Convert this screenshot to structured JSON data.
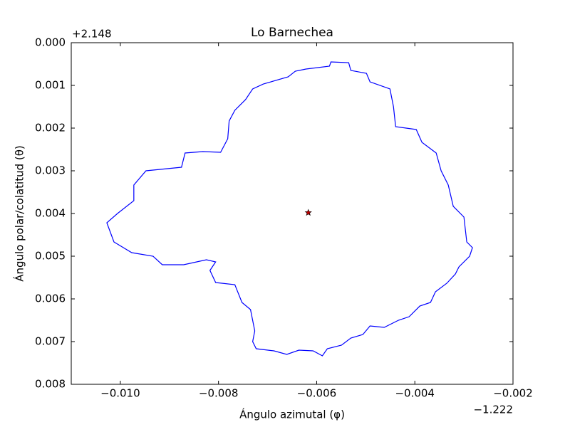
{
  "chart_data": {
    "type": "line",
    "title": "Lo Barnechea",
    "xlabel": "Ángulo azimutal (φ)",
    "ylabel": "Ángulo polar/colatitud (θ)",
    "x_offset_label": "−1.222",
    "y_offset_label": "+2.148",
    "xlim": [
      -0.011,
      -0.002
    ],
    "ylim": [
      0,
      0.008
    ],
    "y_inverted": true,
    "xticks": [
      {
        "value": -0.01,
        "label": "−0.010"
      },
      {
        "value": -0.008,
        "label": "−0.008"
      },
      {
        "value": -0.006,
        "label": "−0.006"
      },
      {
        "value": -0.004,
        "label": "−0.004"
      },
      {
        "value": -0.002,
        "label": "−0.002"
      }
    ],
    "yticks": [
      {
        "value": 0,
        "label": "0.000"
      },
      {
        "value": 0.001,
        "label": "0.001"
      },
      {
        "value": 0.002,
        "label": "0.002"
      },
      {
        "value": 0.003,
        "label": "0.003"
      },
      {
        "value": 0.004,
        "label": "0.004"
      },
      {
        "value": 0.005,
        "label": "0.005"
      },
      {
        "value": 0.006,
        "label": "0.006"
      },
      {
        "value": 0.007,
        "label": "0.007"
      },
      {
        "value": 0.008,
        "label": "0.008"
      }
    ],
    "grid": false,
    "series": [
      {
        "color": "#0000ff",
        "x": [
          -0.006217,
          -0.005739,
          -0.00571,
          -0.005348,
          -0.005304,
          -0.004986,
          -0.004913,
          -0.004507,
          -0.004435,
          -0.004391,
          -0.003971,
          -0.003855,
          -0.003565,
          -0.003464,
          -0.003319,
          -0.003217,
          -0.003,
          -0.002942,
          -0.002826,
          -0.002884,
          -0.003101,
          -0.003174,
          -0.003348,
          -0.00358,
          -0.003681,
          -0.003899,
          -0.004116,
          -0.004333,
          -0.004623,
          -0.004913,
          -0.005058,
          -0.005304,
          -0.005493,
          -0.005783,
          -0.005884,
          -0.006072,
          -0.006362,
          -0.006609,
          -0.00687,
          -0.007232,
          -0.007304,
          -0.007261,
          -0.007348,
          -0.007522,
          -0.007667,
          -0.008058,
          -0.008174,
          -0.008058,
          -0.008246,
          -0.00871,
          -0.009145,
          -0.009333,
          -0.009768,
          -0.01013,
          -0.010275,
          -0.010058,
          -0.009725,
          -0.009725,
          -0.009478,
          -0.009188,
          -0.008754,
          -0.008681,
          -0.008319,
          -0.007957,
          -0.007812,
          -0.007783,
          -0.007667,
          -0.007449,
          -0.007304,
          -0.007087,
          -0.00658,
          -0.006435,
          -0.006217
        ],
        "y": [
          0.000617,
          0.00055,
          0.00045,
          0.000467,
          0.00065,
          0.000717,
          0.000917,
          0.001083,
          0.0015,
          0.001967,
          0.002033,
          0.002333,
          0.002583,
          0.003,
          0.003333,
          0.003833,
          0.004083,
          0.004667,
          0.0048,
          0.005,
          0.00525,
          0.005417,
          0.005633,
          0.005833,
          0.006083,
          0.006167,
          0.006417,
          0.0065,
          0.006667,
          0.006633,
          0.006833,
          0.006917,
          0.007083,
          0.007167,
          0.007333,
          0.007217,
          0.0072,
          0.0073,
          0.007217,
          0.007167,
          0.007,
          0.00675,
          0.00625,
          0.006083,
          0.005667,
          0.005617,
          0.005333,
          0.005133,
          0.005083,
          0.0052,
          0.0052,
          0.005,
          0.004917,
          0.004667,
          0.004217,
          0.004,
          0.0037,
          0.003333,
          0.003,
          0.002967,
          0.002917,
          0.002583,
          0.00255,
          0.002567,
          0.00225,
          0.001833,
          0.001583,
          0.001333,
          0.001083,
          0.000967,
          0.0008,
          0.000667,
          0.000617
        ]
      }
    ],
    "marker": {
      "x": -0.00617,
      "y": 0.00398,
      "color": "#c00000"
    }
  }
}
